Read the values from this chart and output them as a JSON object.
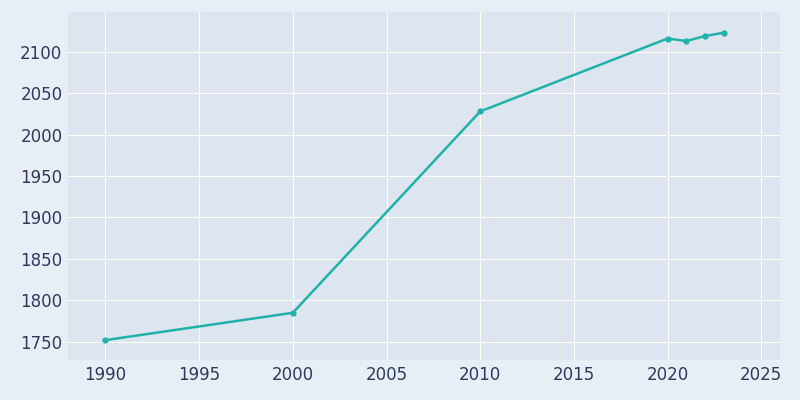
{
  "years": [
    1990,
    2000,
    2010,
    2020,
    2021,
    2022,
    2023
  ],
  "population": [
    1752,
    1785,
    2028,
    2116,
    2113,
    2119,
    2123
  ],
  "line_color": "#20b2aa",
  "marker": "o",
  "marker_size": 3.5,
  "line_width": 1.8,
  "fig_bg_color": "#e8eef5",
  "plot_bg_color": "#dde6f0",
  "grid_color": "#ffffff",
  "tick_color": "#2d3a5e",
  "tick_fontsize": 12,
  "xlim": [
    1988,
    2026
  ],
  "ylim": [
    1728,
    2148
  ],
  "xticks": [
    1990,
    1995,
    2000,
    2005,
    2010,
    2015,
    2020,
    2025
  ],
  "yticks": [
    1750,
    1800,
    1850,
    1900,
    1950,
    2000,
    2050,
    2100
  ]
}
